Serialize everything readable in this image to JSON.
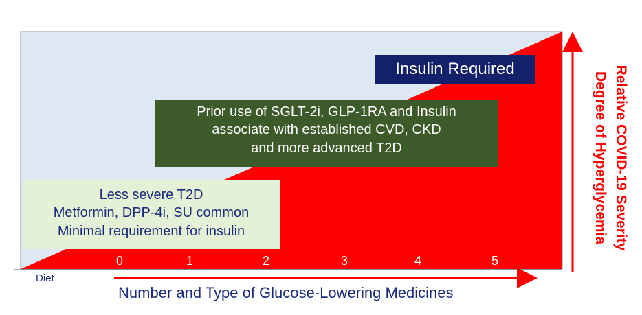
{
  "boxes": {
    "insulin": "Insulin Required",
    "sglt_lines": [
      "Prior use of SGLT-2i,  GLP-1RA and Insulin",
      "associate with established CVD, CKD",
      "and more advanced T2D"
    ],
    "t2d_lines": [
      "Less severe T2D",
      "Metformin, DPP-4i, SU common",
      "Minimal requirement for insulin"
    ]
  },
  "x_axis": {
    "origin_label": "Diet",
    "ticks": [
      "0",
      "1",
      "2",
      "3",
      "4",
      "5"
    ],
    "title": "Number and Type of Glucose-Lowering Medicines"
  },
  "y_axis": {
    "title_line1": "Relative COVID-19 Severity",
    "title_line2": "Degree of Hyperglycemia"
  },
  "colors": {
    "background_panel": "#dde8f3",
    "wedge": "#ff0000",
    "insulin_box": "#13216a",
    "sglt_box": "#3d5a2a",
    "t2d_box": "#e4f1d6",
    "text_blue": "#1b2a7a"
  }
}
